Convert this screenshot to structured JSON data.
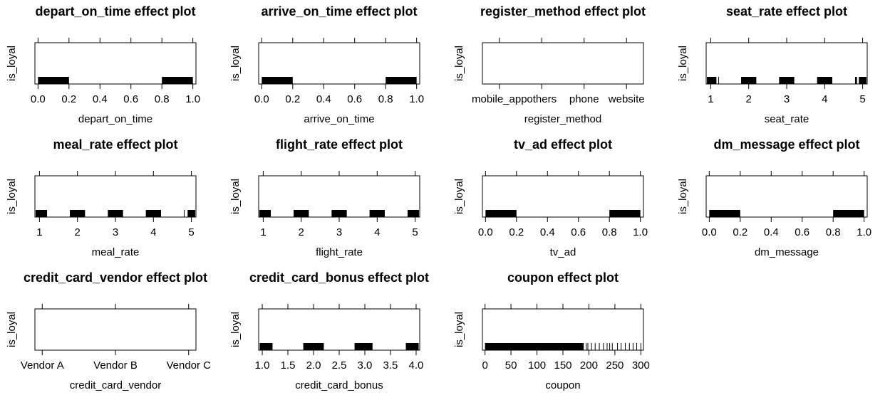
{
  "chart_data": [
    {
      "type": "rug",
      "title": "depart_on_time effect plot",
      "xlabel": "depart_on_time",
      "ylabel": "is_loyal",
      "xlim": [
        -0.02,
        1.02
      ],
      "ticks": [
        "0.0",
        "0.2",
        "0.4",
        "0.6",
        "0.8",
        "1.0"
      ],
      "tick_values": [
        0.0,
        0.2,
        0.4,
        0.6,
        0.8,
        1.0
      ],
      "rug": [
        [
          0.0,
          0.2
        ],
        [
          0.8,
          1.0
        ]
      ]
    },
    {
      "type": "rug",
      "title": "arrive_on_time effect plot",
      "xlabel": "arrive_on_time",
      "ylabel": "is_loyal",
      "xlim": [
        -0.02,
        1.02
      ],
      "ticks": [
        "0.0",
        "0.2",
        "0.4",
        "0.6",
        "0.8",
        "1.0"
      ],
      "tick_values": [
        0.0,
        0.2,
        0.4,
        0.6,
        0.8,
        1.0
      ],
      "rug": [
        [
          0.0,
          0.2
        ],
        [
          0.8,
          1.0
        ]
      ]
    },
    {
      "type": "rug",
      "title": "register_method effect plot",
      "xlabel": "register_method",
      "ylabel": "is_loyal",
      "categorical": true,
      "xlim": [
        0.6,
        4.4
      ],
      "ticks": [
        "mobile_app",
        "others",
        "phone",
        "website"
      ],
      "tick_values": [
        1,
        2,
        3,
        4
      ],
      "rug": []
    },
    {
      "type": "rug",
      "title": "seat_rate effect plot",
      "xlabel": "seat_rate",
      "ylabel": "is_loyal",
      "xlim": [
        0.88,
        5.12
      ],
      "ticks": [
        "1",
        "2",
        "3",
        "4",
        "5"
      ],
      "tick_values": [
        1,
        2,
        3,
        4,
        5
      ],
      "rug": [
        [
          0.9,
          1.15
        ],
        [
          1.2,
          1.2
        ],
        [
          1.8,
          2.2
        ],
        [
          2.8,
          3.2
        ],
        [
          3.8,
          4.2
        ],
        [
          4.8,
          4.85
        ],
        [
          4.9,
          5.1
        ]
      ]
    },
    {
      "type": "rug",
      "title": "meal_rate effect plot",
      "xlabel": "meal_rate",
      "ylabel": "is_loyal",
      "xlim": [
        0.88,
        5.12
      ],
      "ticks": [
        "1",
        "2",
        "3",
        "4",
        "5"
      ],
      "tick_values": [
        1,
        2,
        3,
        4,
        5
      ],
      "rug": [
        [
          0.9,
          1.2
        ],
        [
          1.8,
          2.2
        ],
        [
          2.8,
          3.2
        ],
        [
          3.8,
          4.2
        ],
        [
          4.8,
          4.8
        ],
        [
          4.9,
          5.1
        ]
      ]
    },
    {
      "type": "rug",
      "title": "flight_rate effect plot",
      "xlabel": "flight_rate",
      "ylabel": "is_loyal",
      "xlim": [
        0.88,
        5.12
      ],
      "ticks": [
        "1",
        "2",
        "3",
        "4",
        "5"
      ],
      "tick_values": [
        1,
        2,
        3,
        4,
        5
      ],
      "rug": [
        [
          0.9,
          1.2
        ],
        [
          1.8,
          2.2
        ],
        [
          2.8,
          3.2
        ],
        [
          3.8,
          4.2
        ],
        [
          4.8,
          5.1
        ]
      ]
    },
    {
      "type": "rug",
      "title": "tv_ad effect plot",
      "xlabel": "tv_ad",
      "ylabel": "is_loyal",
      "xlim": [
        -0.02,
        1.02
      ],
      "ticks": [
        "0.0",
        "0.2",
        "0.4",
        "0.6",
        "0.8",
        "1.0"
      ],
      "tick_values": [
        0.0,
        0.2,
        0.4,
        0.6,
        0.8,
        1.0
      ],
      "rug": [
        [
          0.0,
          0.2
        ],
        [
          0.8,
          1.0
        ]
      ]
    },
    {
      "type": "rug",
      "title": "dm_message effect plot",
      "xlabel": "dm_message",
      "ylabel": "is_loyal",
      "xlim": [
        -0.02,
        1.02
      ],
      "ticks": [
        "0.0",
        "0.2",
        "0.4",
        "0.6",
        "0.8",
        "1.0"
      ],
      "tick_values": [
        0.0,
        0.2,
        0.4,
        0.6,
        0.8,
        1.0
      ],
      "rug": [
        [
          0.0,
          0.2
        ],
        [
          0.8,
          1.0
        ]
      ]
    },
    {
      "type": "rug",
      "title": "credit_card_vendor effect plot",
      "xlabel": "credit_card_vendor",
      "ylabel": "is_loyal",
      "categorical": true,
      "xlim": [
        0.9,
        3.1
      ],
      "ticks": [
        "Vendor A",
        "Vendor B",
        "Vendor C"
      ],
      "tick_values": [
        1,
        2,
        3
      ],
      "rug": []
    },
    {
      "type": "rug",
      "title": "credit_card_bonus effect plot",
      "xlabel": "credit_card_bonus",
      "ylabel": "is_loyal",
      "xlim": [
        0.93,
        4.07
      ],
      "ticks": [
        "1.0",
        "1.5",
        "2.0",
        "2.5",
        "3.0",
        "3.5",
        "4.0"
      ],
      "tick_values": [
        1.0,
        1.5,
        2.0,
        2.5,
        3.0,
        3.5,
        4.0
      ],
      "rug": [
        [
          0.95,
          1.2
        ],
        [
          1.8,
          2.2
        ],
        [
          2.8,
          3.15
        ],
        [
          3.8,
          4.05
        ]
      ]
    },
    {
      "type": "rug",
      "title": "coupon effect plot",
      "xlabel": "coupon",
      "ylabel": "is_loyal",
      "xlim": [
        -5,
        305
      ],
      "ticks": [
        "0",
        "50",
        "100",
        "150",
        "200",
        "250",
        "300"
      ],
      "tick_values": [
        0,
        50,
        100,
        150,
        200,
        250,
        300
      ],
      "rug": [
        [
          0,
          190
        ]
      ],
      "rug_points": [
        195,
        198,
        205,
        212,
        220,
        228,
        235,
        240,
        245,
        255,
        262,
        270,
        278,
        285,
        292,
        300
      ]
    }
  ]
}
